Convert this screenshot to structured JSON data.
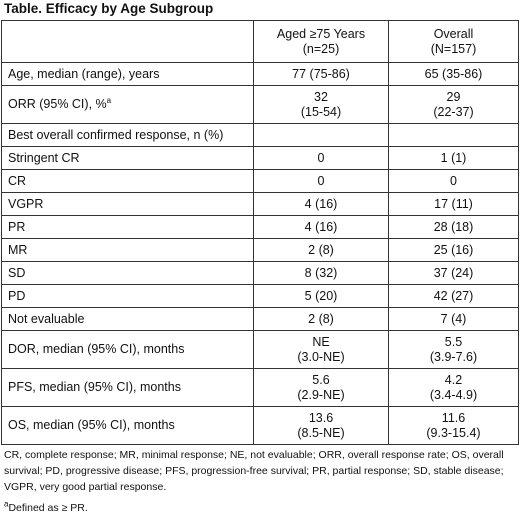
{
  "title": "Table. Efficacy by Age Subgroup",
  "header": {
    "col1": "",
    "col2_line1": "Aged ≥75 Years",
    "col2_line2": "(n=25)",
    "col3_line1": "Overall",
    "col3_line2": "(N=157)"
  },
  "rows": [
    {
      "label": "Age, median (range), years",
      "a": "77 (75-86)",
      "b": "65 (35-86)"
    },
    {
      "label": "ORR (95% CI), %",
      "sup": "a",
      "a1": "32",
      "a2": "(15-54)",
      "b1": "29",
      "b2": "(22-37)"
    },
    {
      "label": "Best overall confirmed response, n (%)",
      "a": "",
      "b": ""
    },
    {
      "label": "Stringent CR",
      "a": "0",
      "b": "1 (1)"
    },
    {
      "label": "CR",
      "a": "0",
      "b": "0"
    },
    {
      "label": "VGPR",
      "a": "4 (16)",
      "b": "17 (11)"
    },
    {
      "label": "PR",
      "a": "4 (16)",
      "b": "28 (18)"
    },
    {
      "label": "MR",
      "a": "2 (8)",
      "b": "25 (16)"
    },
    {
      "label": "SD",
      "a": "8 (32)",
      "b": "37 (24)"
    },
    {
      "label": "PD",
      "a": "5 (20)",
      "b": "42 (27)"
    },
    {
      "label": "Not evaluable",
      "a": "2 (8)",
      "b": "7 (4)"
    },
    {
      "label": "DOR, median (95% CI), months",
      "a1": "NE",
      "a2": "(3.0-NE)",
      "b1": "5.5",
      "b2": "(3.9-7.6)"
    },
    {
      "label": "PFS, median (95% CI), months",
      "a1": "5.6",
      "a2": "(2.9-NE)",
      "b1": "4.2",
      "b2": "(3.4-4.9)"
    },
    {
      "label": "OS, median (95% CI), months",
      "a1": "13.6",
      "a2": "(8.5-NE)",
      "b1": "11.6",
      "b2": "(9.3-15.4)"
    }
  ],
  "footnote": "CR, complete response; MR, minimal response; NE, not evaluable; ORR, overall response rate; OS, overall survival; PD, progressive disease; PFS, progression-free survival; PR, partial response; SD, stable disease; VGPR, very good partial response.",
  "note_sup": "a",
  "note_text": "Defined as ≥ PR."
}
